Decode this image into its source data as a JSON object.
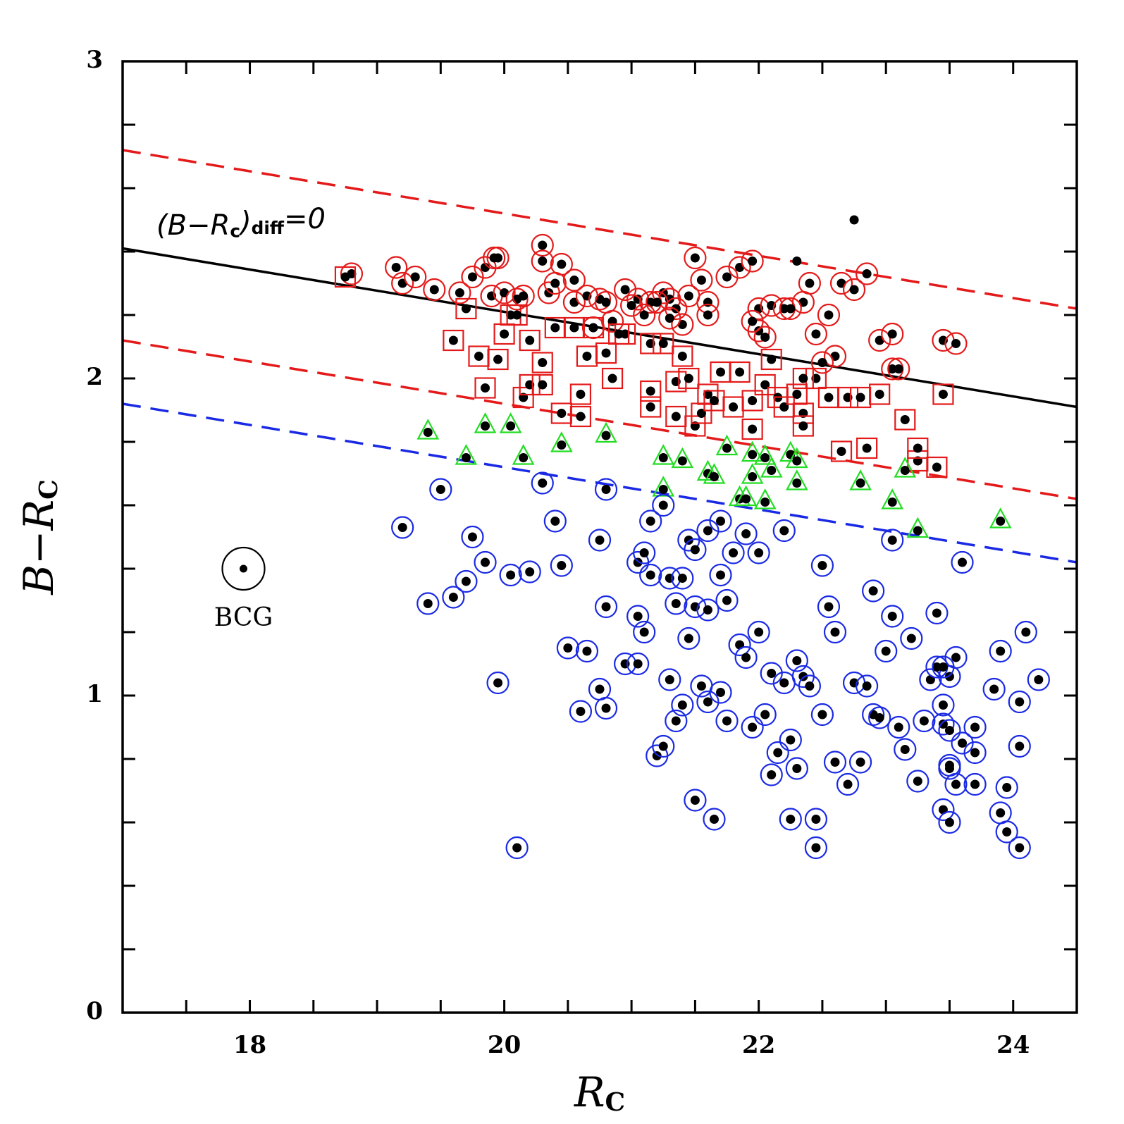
{
  "chart_data": {
    "type": "scatter",
    "xlabel": [
      {
        "text": "R"
      },
      {
        "text": "C",
        "sub": true
      }
    ],
    "ylabel": [
      {
        "text": "B"
      },
      {
        "text": "−"
      },
      {
        "text": "R"
      },
      {
        "text": "C",
        "sub": true
      }
    ],
    "xlim": [
      17,
      24.5
    ],
    "ylim": [
      0,
      3
    ],
    "xticks": [
      18,
      20,
      22,
      24
    ],
    "yticks": [
      0,
      1,
      2,
      3
    ],
    "xminorticks": [
      17.5,
      18.5,
      19,
      19.5,
      20.5,
      21,
      21.5,
      22.5,
      23,
      23.5,
      24.5
    ],
    "yminorticks": [
      0.2,
      0.4,
      0.6,
      0.8,
      1.2,
      1.4,
      1.6,
      1.8,
      2.2,
      2.4,
      2.6,
      2.8
    ],
    "annotation": [
      {
        "text": "(B−R"
      },
      {
        "text": "c",
        "sub": true
      },
      {
        "text": ")"
      },
      {
        "text": "diff",
        "sub": true
      },
      {
        "text": "=0"
      }
    ],
    "bcg": {
      "x": 17.95,
      "y": 1.4,
      "label": "BCG"
    },
    "lines": [
      {
        "color": "#000000",
        "dash": false,
        "x": [
          17,
          24.5
        ],
        "values": [
          2.41,
          1.91
        ]
      },
      {
        "color": "#e41a1a",
        "dash": true,
        "x": [
          17,
          24.5
        ],
        "values": [
          2.72,
          2.22
        ]
      },
      {
        "color": "#e41a1a",
        "dash": true,
        "x": [
          17,
          24.5
        ],
        "values": [
          2.12,
          1.62
        ]
      },
      {
        "color": "#1a2ae4",
        "dash": true,
        "x": [
          17,
          24.5
        ],
        "values": [
          1.92,
          1.42
        ]
      }
    ],
    "series": [
      {
        "marker": "circle",
        "color": "#e41a1a",
        "x": [
          18.8,
          19.15,
          19.2,
          19.3,
          19.45,
          19.65,
          19.75,
          19.85,
          19.92,
          19.95,
          19.9,
          20.0,
          20.1,
          20.15,
          20.3,
          20.3,
          20.35,
          20.45,
          20.55,
          20.65,
          20.75,
          20.8,
          20.95,
          21.05,
          21.15,
          21.25,
          21.3,
          21.2,
          21.35,
          21.5,
          21.55,
          21.6,
          21.75,
          21.85,
          21.95,
          22.0,
          22.1,
          22.2,
          22.35,
          22.4,
          22.55,
          22.65,
          22.75,
          22.85,
          22.95,
          23.05,
          23.45,
          23.55,
          22.0,
          21.4,
          21.6,
          21.3,
          22.6,
          22.5,
          23.05,
          23.1,
          22.05,
          22.45,
          21.95,
          20.85,
          22.25,
          20.4,
          21.0,
          21.1,
          20.7,
          20.55,
          21.45
        ],
        "values": [
          2.33,
          2.35,
          2.3,
          2.32,
          2.28,
          2.27,
          2.32,
          2.35,
          2.38,
          2.38,
          2.26,
          2.27,
          2.25,
          2.26,
          2.42,
          2.37,
          2.27,
          2.36,
          2.24,
          2.26,
          2.25,
          2.24,
          2.28,
          2.25,
          2.24,
          2.27,
          2.25,
          2.24,
          2.22,
          2.38,
          2.31,
          2.24,
          2.32,
          2.35,
          2.37,
          2.22,
          2.23,
          2.22,
          2.24,
          2.3,
          2.2,
          2.3,
          2.28,
          2.33,
          2.12,
          2.14,
          2.12,
          2.11,
          2.15,
          2.17,
          2.2,
          2.19,
          2.07,
          2.05,
          2.03,
          2.03,
          2.13,
          2.14,
          2.18,
          2.18,
          2.22,
          2.3,
          2.23,
          2.2,
          2.16,
          2.31,
          2.26
        ]
      },
      {
        "marker": "square",
        "color": "#e41a1a",
        "x": [
          18.75,
          19.6,
          19.7,
          19.8,
          19.85,
          19.95,
          20.0,
          20.05,
          20.1,
          20.15,
          20.2,
          20.2,
          20.3,
          20.3,
          20.4,
          20.45,
          20.55,
          20.6,
          20.6,
          20.65,
          20.7,
          20.8,
          20.85,
          20.95,
          21.15,
          21.15,
          21.15,
          21.25,
          21.35,
          21.35,
          21.4,
          21.45,
          21.5,
          21.55,
          21.6,
          21.65,
          21.7,
          21.8,
          21.85,
          21.95,
          21.95,
          22.05,
          22.1,
          22.15,
          22.2,
          22.3,
          22.35,
          22.35,
          22.45,
          22.55,
          22.7,
          22.8,
          22.95,
          22.65,
          22.85,
          23.15,
          23.25,
          23.25,
          23.45,
          23.4,
          22.35,
          20.9
        ],
        "values": [
          2.32,
          2.12,
          2.22,
          2.07,
          1.97,
          2.06,
          2.14,
          2.2,
          2.2,
          1.94,
          1.98,
          2.12,
          1.98,
          2.05,
          2.16,
          1.89,
          2.16,
          1.88,
          1.95,
          2.07,
          2.16,
          2.08,
          2.0,
          2.14,
          2.11,
          1.96,
          1.91,
          2.11,
          1.99,
          1.88,
          2.07,
          2.0,
          1.85,
          1.89,
          1.95,
          1.93,
          2.02,
          1.91,
          2.02,
          1.93,
          1.84,
          1.98,
          2.06,
          1.94,
          1.91,
          1.95,
          1.89,
          1.85,
          2.0,
          1.94,
          1.94,
          1.94,
          1.95,
          1.77,
          1.78,
          1.87,
          1.74,
          1.78,
          1.95,
          1.72,
          2.0,
          2.14
        ]
      },
      {
        "marker": "triangle",
        "color": "#22dd22",
        "x": [
          19.4,
          19.7,
          19.85,
          20.05,
          20.15,
          20.45,
          20.8,
          21.25,
          21.25,
          21.4,
          21.6,
          21.65,
          21.75,
          21.85,
          21.95,
          21.95,
          22.05,
          22.05,
          22.1,
          22.25,
          22.3,
          22.3,
          22.8,
          23.05,
          23.15,
          23.25,
          23.9,
          21.9
        ],
        "values": [
          1.83,
          1.75,
          1.85,
          1.85,
          1.75,
          1.79,
          1.82,
          1.75,
          1.65,
          1.74,
          1.7,
          1.69,
          1.78,
          1.62,
          1.69,
          1.76,
          1.61,
          1.75,
          1.71,
          1.76,
          1.67,
          1.74,
          1.67,
          1.61,
          1.71,
          1.52,
          1.55,
          1.62
        ]
      },
      {
        "marker": "circle",
        "color": "#1a2ae4",
        "x": [
          19.2,
          19.4,
          19.5,
          19.6,
          19.7,
          19.75,
          19.85,
          19.95,
          20.05,
          20.1,
          20.2,
          20.3,
          20.4,
          20.45,
          20.5,
          20.6,
          20.65,
          20.75,
          20.75,
          20.8,
          20.8,
          20.8,
          20.95,
          21.05,
          21.05,
          21.05,
          21.1,
          21.1,
          21.15,
          21.15,
          21.2,
          21.25,
          21.25,
          21.3,
          21.3,
          21.35,
          21.35,
          21.4,
          21.4,
          21.45,
          21.45,
          21.5,
          21.5,
          21.55,
          21.6,
          21.6,
          21.6,
          21.5,
          21.7,
          21.7,
          21.7,
          21.75,
          21.75,
          21.65,
          21.8,
          21.85,
          21.9,
          21.9,
          21.95,
          22.0,
          22.0,
          22.05,
          22.1,
          22.1,
          22.15,
          22.2,
          22.2,
          22.25,
          22.3,
          22.3,
          22.35,
          22.4,
          22.45,
          22.5,
          22.5,
          22.55,
          22.6,
          22.6,
          22.7,
          22.75,
          22.8,
          22.85,
          22.9,
          22.9,
          22.95,
          23.0,
          23.05,
          23.05,
          23.1,
          23.15,
          23.2,
          23.25,
          23.3,
          23.35,
          23.4,
          23.45,
          23.5,
          23.55,
          23.6,
          23.9,
          23.95,
          24.05,
          24.05,
          24.05,
          24.1,
          24.2,
          23.9,
          23.95,
          23.85,
          23.7,
          23.7,
          23.7,
          23.6,
          23.55,
          23.5,
          23.45,
          23.45,
          23.5,
          23.4,
          23.45,
          23.5,
          23.5,
          22.25,
          22.45
        ],
        "values": [
          1.53,
          1.29,
          1.65,
          1.31,
          1.36,
          1.5,
          1.42,
          1.04,
          1.38,
          0.52,
          1.39,
          1.67,
          1.55,
          1.41,
          1.15,
          0.95,
          1.14,
          1.02,
          1.49,
          1.65,
          1.28,
          0.96,
          1.1,
          1.25,
          1.1,
          1.42,
          1.2,
          1.45,
          1.38,
          1.55,
          0.81,
          0.84,
          1.6,
          1.37,
          1.05,
          0.92,
          1.29,
          0.97,
          1.37,
          1.49,
          1.18,
          1.46,
          1.28,
          1.03,
          0.98,
          1.52,
          1.27,
          0.67,
          1.55,
          1.38,
          1.01,
          0.92,
          1.3,
          0.61,
          1.45,
          1.16,
          1.12,
          1.51,
          0.9,
          1.45,
          1.2,
          0.94,
          0.75,
          1.07,
          0.82,
          1.52,
          1.04,
          0.86,
          1.11,
          0.77,
          1.06,
          1.03,
          0.61,
          1.41,
          0.94,
          1.28,
          1.2,
          0.79,
          0.72,
          1.04,
          0.79,
          1.03,
          1.33,
          0.94,
          0.93,
          1.14,
          1.49,
          1.25,
          0.9,
          0.83,
          1.18,
          0.73,
          0.92,
          1.05,
          1.09,
          0.91,
          0.78,
          0.72,
          0.85,
          0.63,
          0.57,
          0.52,
          0.84,
          0.98,
          1.2,
          1.05,
          1.14,
          0.71,
          1.02,
          0.9,
          0.82,
          0.72,
          1.42,
          1.12,
          1.06,
          1.09,
          0.97,
          0.89,
          1.26,
          0.64,
          0.6,
          0.77,
          0.61,
          0.52
        ]
      },
      {
        "marker": "none",
        "color": "#000000",
        "x": [
          22.3,
          22.75
        ],
        "values": [
          2.37,
          2.5
        ]
      }
    ]
  }
}
